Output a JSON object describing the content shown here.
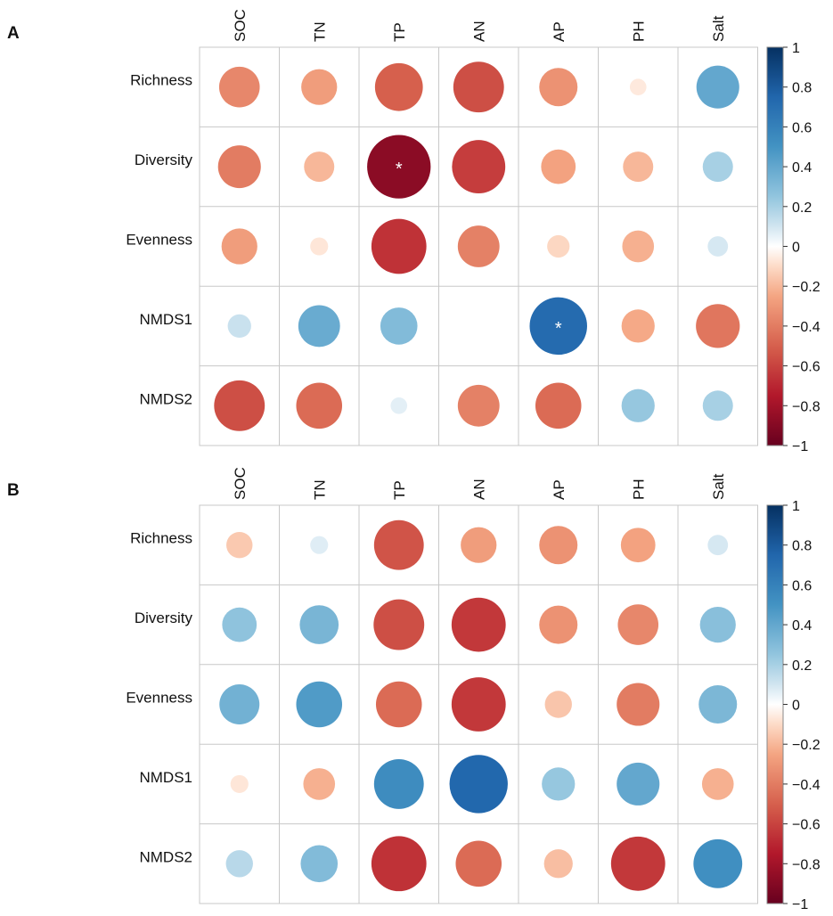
{
  "chart_data": [
    {
      "type": "heatmap",
      "panel_label": "A",
      "rows": [
        "Richness",
        "Diversity",
        "Evenness",
        "NMDS1",
        "NMDS2"
      ],
      "columns": [
        "SOC",
        "TN",
        "TP",
        "AN",
        "AP",
        "PH",
        "Salt"
      ],
      "values": [
        [
          -0.36,
          -0.28,
          -0.5,
          -0.56,
          -0.32,
          -0.06,
          0.4
        ],
        [
          -0.4,
          -0.2,
          -0.88,
          -0.62,
          -0.26,
          -0.2,
          0.2
        ],
        [
          -0.28,
          -0.07,
          -0.66,
          -0.38,
          -0.11,
          -0.22,
          0.09
        ],
        [
          0.12,
          0.38,
          0.3,
          0.0,
          0.72,
          -0.24,
          -0.42
        ],
        [
          -0.56,
          -0.46,
          0.06,
          -0.38,
          -0.46,
          0.24,
          0.2
        ]
      ],
      "significance": [
        [
          "",
          "",
          "",
          "",
          "",
          "",
          ""
        ],
        [
          "",
          "",
          "*",
          "",
          "",
          "",
          ""
        ],
        [
          "",
          "",
          "",
          "",
          "",
          "",
          ""
        ],
        [
          "",
          "",
          "",
          "",
          "*",
          "",
          ""
        ],
        [
          "",
          "",
          "",
          "",
          "",
          "",
          ""
        ]
      ],
      "colorbar": {
        "min": -1,
        "max": 1,
        "ticks": [
          "1",
          "0.8",
          "0.6",
          "0.4",
          "0.2",
          "0",
          "−0.2",
          "−0.4",
          "−0.6",
          "−0.8",
          "−1"
        ]
      }
    },
    {
      "type": "heatmap",
      "panel_label": "B",
      "rows": [
        "Richness",
        "Diversity",
        "Evenness",
        "NMDS1",
        "NMDS2"
      ],
      "columns": [
        "SOC",
        "TN",
        "TP",
        "AN",
        "AP",
        "PH",
        "Salt"
      ],
      "values": [
        [
          -0.15,
          0.07,
          -0.54,
          -0.28,
          -0.32,
          -0.26,
          0.09
        ],
        [
          0.26,
          0.33,
          -0.56,
          -0.64,
          -0.32,
          -0.36,
          0.28
        ],
        [
          0.35,
          0.46,
          -0.46,
          -0.64,
          -0.16,
          -0.4,
          0.32
        ],
        [
          -0.07,
          -0.22,
          0.54,
          0.74,
          0.24,
          0.4,
          -0.22
        ],
        [
          0.16,
          0.3,
          -0.66,
          -0.46,
          -0.18,
          -0.64,
          0.52
        ]
      ],
      "significance": [
        [
          "",
          "",
          "",
          "",
          "",
          "",
          ""
        ],
        [
          "",
          "",
          "",
          "",
          "",
          "",
          ""
        ],
        [
          "",
          "",
          "",
          "",
          "",
          "",
          ""
        ],
        [
          "",
          "",
          "",
          "",
          "",
          "",
          ""
        ],
        [
          "",
          "",
          "",
          "",
          "",
          "",
          ""
        ]
      ],
      "colorbar": {
        "min": -1,
        "max": 1,
        "ticks": [
          "1",
          "0.8",
          "0.6",
          "0.4",
          "0.2",
          "0",
          "−0.2",
          "−0.4",
          "−0.6",
          "−0.8",
          "−1"
        ]
      }
    }
  ]
}
